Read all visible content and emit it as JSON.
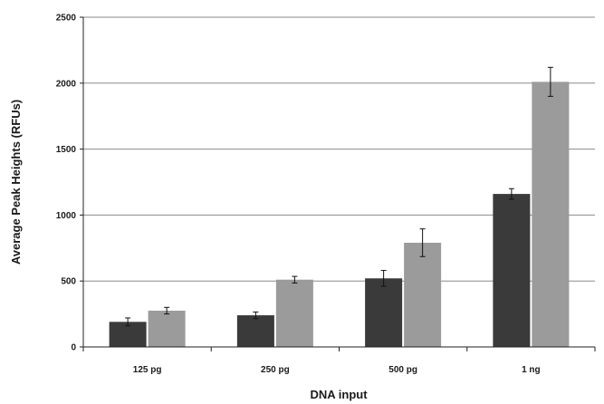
{
  "chart_data": {
    "type": "bar",
    "title": "",
    "xlabel": "DNA input",
    "ylabel": "Average Peak Heights (RFUs)",
    "categories": [
      "125 pg",
      "250 pg",
      "500 pg",
      "1 ng"
    ],
    "ylim": [
      0,
      2500
    ],
    "yticks": [
      0,
      500,
      1000,
      1500,
      2000,
      2500
    ],
    "grid": true,
    "legend": "none",
    "series": [
      {
        "values": [
          190,
          240,
          520,
          1160
        ],
        "errors": [
          30,
          25,
          60,
          40
        ],
        "color": "#3a3a3a"
      },
      {
        "values": [
          275,
          510,
          790,
          2010
        ],
        "errors": [
          25,
          25,
          105,
          110
        ],
        "color": "#9b9b9b"
      }
    ]
  }
}
